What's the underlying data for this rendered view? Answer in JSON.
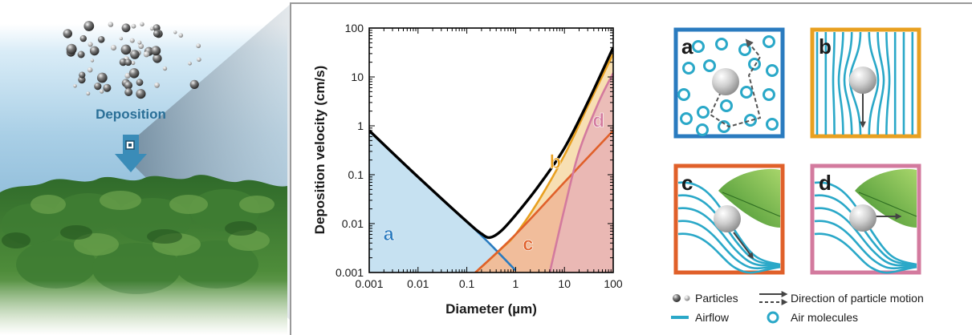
{
  "left_scene": {
    "deposition_label": "Deposition"
  },
  "chart_data": {
    "type": "line",
    "xscale": "log",
    "yscale": "log",
    "xlim": [
      0.001,
      100
    ],
    "ylim": [
      0.001,
      100
    ],
    "xlabel": "Diameter (µm)",
    "ylabel": "Deposition velocity (cm/s)",
    "xticks": [
      "0.001",
      "0.01",
      "0.1",
      "1",
      "10",
      "100"
    ],
    "yticks": [
      "0.001",
      "0.01",
      "0.1",
      "1",
      "10",
      "100"
    ],
    "series": [
      {
        "name": "a",
        "color": "#2a7bbf",
        "fill": "#bcdcef",
        "points": [
          [
            0.001,
            0.8
          ],
          [
            0.01,
            0.09
          ],
          [
            0.1,
            0.011
          ],
          [
            0.3,
            0.0038
          ],
          [
            1,
            0.0011
          ]
        ]
      },
      {
        "name": "b",
        "color": "#e8a020",
        "fill": "#f6d9a6",
        "points": [
          [
            0.15,
            0.001
          ],
          [
            0.5,
            0.003
          ],
          [
            1,
            0.006
          ],
          [
            3,
            0.03
          ],
          [
            10,
            0.25
          ],
          [
            30,
            2.5
          ],
          [
            100,
            30
          ]
        ]
      },
      {
        "name": "c",
        "color": "#e0602a",
        "fill": "#f0b796",
        "points": [
          [
            0.15,
            0.001
          ],
          [
            1,
            0.006
          ],
          [
            10,
            0.07
          ],
          [
            100,
            0.8
          ]
        ]
      },
      {
        "name": "d",
        "color": "#d37a9e",
        "fill": "#e9b7b8",
        "points": [
          [
            5,
            0.001
          ],
          [
            10,
            0.02
          ],
          [
            20,
            0.3
          ],
          [
            50,
            3
          ],
          [
            100,
            12
          ]
        ]
      }
    ],
    "total": {
      "color": "#000000",
      "points": [
        [
          0.001,
          0.8
        ],
        [
          0.01,
          0.09
        ],
        [
          0.1,
          0.011
        ],
        [
          0.2,
          0.0062
        ],
        [
          0.3,
          0.0052
        ],
        [
          0.5,
          0.007
        ],
        [
          1,
          0.015
        ],
        [
          3,
          0.06
        ],
        [
          10,
          0.35
        ],
        [
          30,
          3
        ],
        [
          100,
          40
        ]
      ]
    }
  },
  "insets": [
    {
      "letter": "a",
      "border": "#2a7bbf"
    },
    {
      "letter": "b",
      "border": "#e8a020"
    },
    {
      "letter": "c",
      "border": "#e0602a"
    },
    {
      "letter": "d",
      "border": "#d37a9e"
    }
  ],
  "legend": {
    "particles": "Particles",
    "airflow": "Airflow",
    "direction": "Direction of particle motion",
    "air_molecules": "Air molecules"
  },
  "colors": {
    "airflow": "#2aa8c8",
    "particle_dark": "#555555",
    "particle_light": "#bdbdbd",
    "text_dark": "#1a1a1a",
    "deposition_blue": "#2a6f97"
  }
}
